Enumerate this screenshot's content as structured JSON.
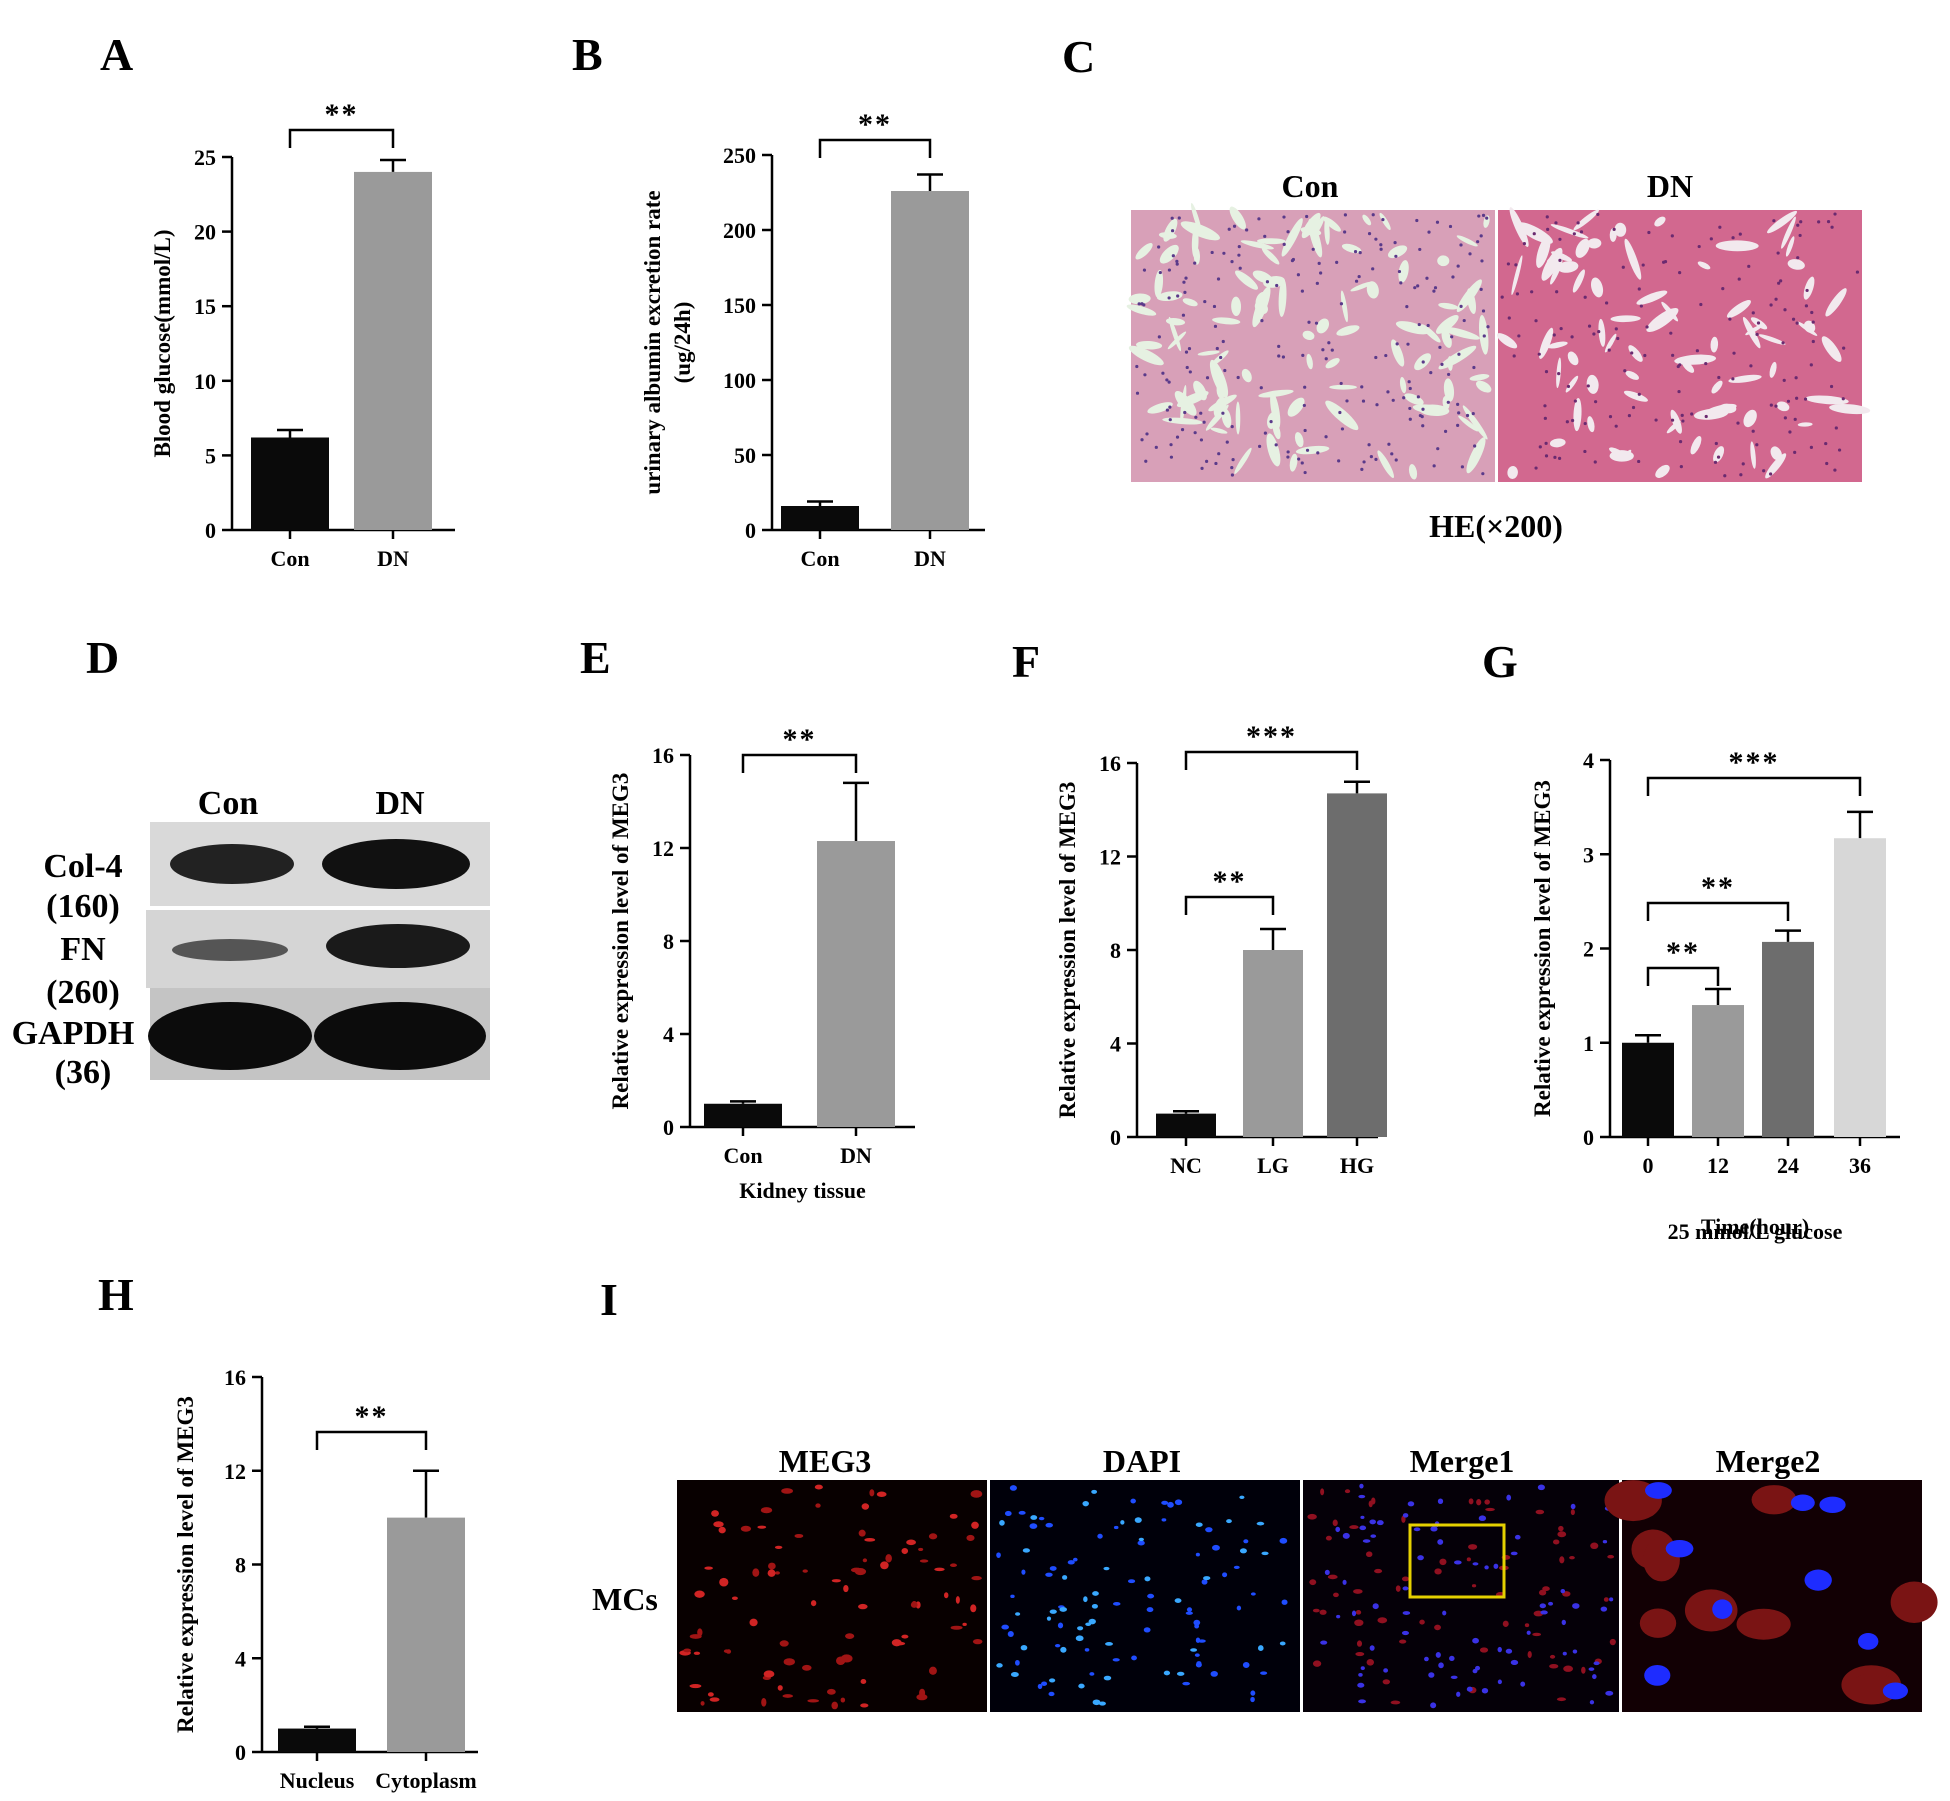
{
  "panel_labels": {
    "A": "A",
    "B": "B",
    "C": "C",
    "D": "D",
    "E": "E",
    "F": "F",
    "G": "G",
    "H": "H",
    "I": "I"
  },
  "colors": {
    "black": "#0a0a0a",
    "gray": "#9a9a9a",
    "dark_gray": "#6d6d6d",
    "light_gray": "#d7d7d7",
    "he_pink": "#d28aa8",
    "he_lumen": "#dbe9d8",
    "fluor_red": "#c81e1e",
    "fluor_blue": "#1e3cff",
    "yellow_box": "#e5d000"
  },
  "chart_data": [
    {
      "id": "A",
      "type": "bar",
      "categories": [
        "Con",
        "DN"
      ],
      "values": [
        6.2,
        24.0
      ],
      "errors": [
        0.5,
        0.8
      ],
      "ylabel": "Blood glucose(mmol/L)",
      "xlabel": "",
      "ylim": [
        0,
        25
      ],
      "yticks": [
        0,
        5,
        10,
        15,
        20,
        25
      ],
      "bar_colors": [
        "#0a0a0a",
        "#9a9a9a"
      ],
      "significance": [
        {
          "from": 0,
          "to": 1,
          "label": "**"
        }
      ]
    },
    {
      "id": "B",
      "type": "bar",
      "categories": [
        "Con",
        "DN"
      ],
      "values": [
        16,
        226
      ],
      "errors": [
        3,
        11
      ],
      "ylabel": "urinary albumin excretion rate",
      "ylabel2": "(ug/24h)",
      "xlabel": "",
      "ylim": [
        0,
        250
      ],
      "yticks": [
        0,
        50,
        100,
        150,
        200,
        250
      ],
      "bar_colors": [
        "#0a0a0a",
        "#9a9a9a"
      ],
      "significance": [
        {
          "from": 0,
          "to": 1,
          "label": "**"
        }
      ]
    },
    {
      "id": "E",
      "type": "bar",
      "categories": [
        "Con",
        "DN"
      ],
      "values": [
        1.0,
        12.3
      ],
      "errors": [
        0.1,
        2.5
      ],
      "ylabel": "Relative expression level of MEG3",
      "xlabel": "Kidney tissue",
      "ylim": [
        0,
        16
      ],
      "yticks": [
        0,
        4,
        8,
        12,
        16
      ],
      "bar_colors": [
        "#0a0a0a",
        "#9a9a9a"
      ],
      "significance": [
        {
          "from": 0,
          "to": 1,
          "label": "**"
        }
      ]
    },
    {
      "id": "F",
      "type": "bar",
      "categories": [
        "NC",
        "LG",
        "HG"
      ],
      "values": [
        1.0,
        8.0,
        14.7
      ],
      "errors": [
        0.1,
        0.9,
        0.5
      ],
      "ylabel": "Relative expression level of MEG3",
      "xlabel": "",
      "ylim": [
        0,
        16
      ],
      "yticks": [
        0,
        4,
        8,
        12,
        16
      ],
      "bar_colors": [
        "#0a0a0a",
        "#9a9a9a",
        "#6d6d6d"
      ],
      "significance": [
        {
          "from": 0,
          "to": 1,
          "label": "**"
        },
        {
          "from": 0,
          "to": 2,
          "label": "***"
        }
      ]
    },
    {
      "id": "G",
      "type": "bar",
      "categories": [
        "0",
        "12",
        "24",
        "36"
      ],
      "values": [
        1.0,
        1.4,
        2.07,
        3.17
      ],
      "errors": [
        0.08,
        0.17,
        0.12,
        0.28
      ],
      "ylabel": "Relative expression level of MEG3",
      "xlabel": "Time(hour)",
      "xlabel2": "25 mmol/L glucose",
      "ylim": [
        0,
        4
      ],
      "yticks": [
        0,
        1,
        2,
        3,
        4
      ],
      "bar_colors": [
        "#0a0a0a",
        "#9a9a9a",
        "#6d6d6d",
        "#d7d7d7"
      ],
      "significance": [
        {
          "from": 0,
          "to": 1,
          "label": "**"
        },
        {
          "from": 0,
          "to": 2,
          "label": "**"
        },
        {
          "from": 0,
          "to": 3,
          "label": "***"
        }
      ]
    },
    {
      "id": "H",
      "type": "bar",
      "categories": [
        "Nucleus",
        "Cytoplasm"
      ],
      "values": [
        1.0,
        10.0
      ],
      "errors": [
        0.08,
        2.0
      ],
      "ylabel": "Relative expression level of MEG3",
      "xlabel": "",
      "ylim": [
        0,
        16
      ],
      "yticks": [
        0,
        4,
        8,
        12,
        16
      ],
      "bar_colors": [
        "#0a0a0a",
        "#9a9a9a"
      ],
      "significance": [
        {
          "from": 0,
          "to": 1,
          "label": "**"
        }
      ]
    }
  ],
  "panel_c": {
    "titles": [
      "Con",
      "DN"
    ],
    "caption": "HE(×200)"
  },
  "panel_d": {
    "columns": [
      "Con",
      "DN"
    ],
    "rows": [
      {
        "name": "Col-4",
        "kda": "(160)"
      },
      {
        "name": "FN",
        "kda": "(260)"
      },
      {
        "name": "GAPDH",
        "kda": "(36)"
      }
    ]
  },
  "panel_i": {
    "titles": [
      "MEG3",
      "DAPI",
      "Merge1",
      "Merge2"
    ],
    "row_label": "MCs"
  }
}
